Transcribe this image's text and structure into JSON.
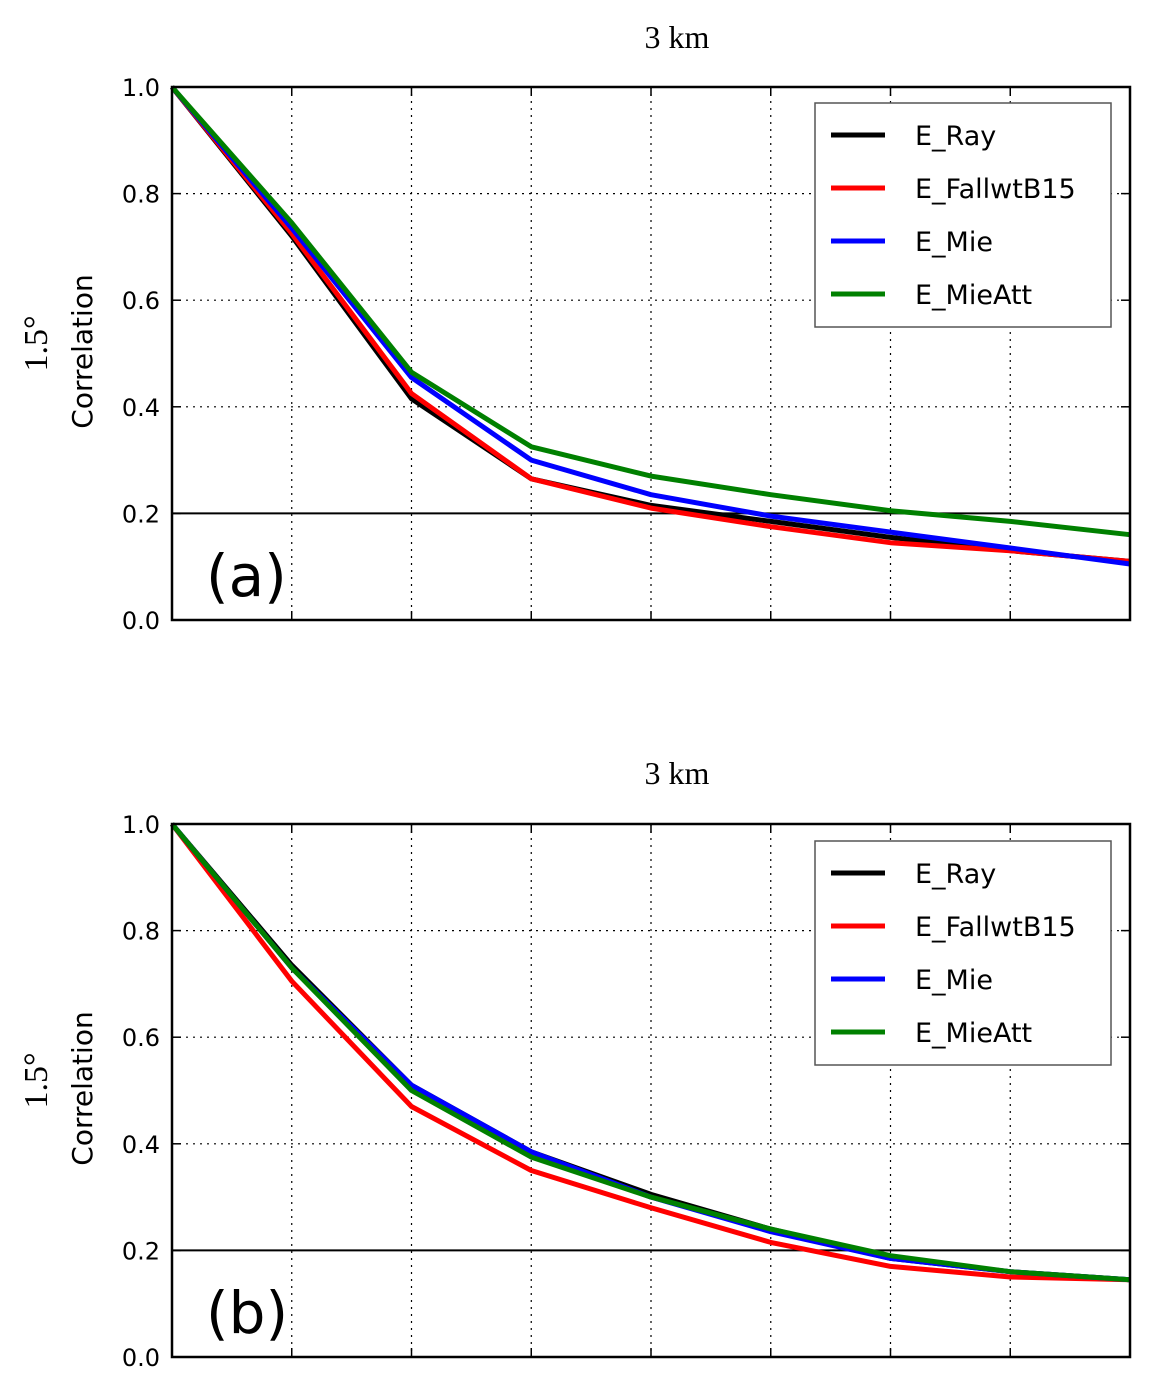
{
  "chart_data": [
    {
      "type": "line",
      "title": "3 km",
      "row_label": "1.5°",
      "ylabel": "Correlation",
      "panel_label": "(a)",
      "x": [
        0,
        1,
        2,
        3,
        4,
        5,
        6,
        7,
        8
      ],
      "ylim": [
        0.0,
        1.0
      ],
      "yticks": [
        "0.0",
        "0.2",
        "0.4",
        "0.6",
        "0.8",
        "1.0"
      ],
      "grid": true,
      "legend_position": "top-right",
      "threshold": 0.2,
      "series": [
        {
          "name": "E_Ray",
          "color": "#000000",
          "values": [
            1.0,
            0.72,
            0.415,
            0.265,
            0.215,
            0.185,
            0.155,
            0.13,
            0.11
          ]
        },
        {
          "name": "E_FallwtB15",
          "color": "#ff0000",
          "values": [
            1.0,
            0.725,
            0.425,
            0.265,
            0.21,
            0.175,
            0.145,
            0.13,
            0.11
          ]
        },
        {
          "name": "E_Mie",
          "color": "#0000ff",
          "values": [
            1.0,
            0.735,
            0.455,
            0.3,
            0.235,
            0.195,
            0.165,
            0.135,
            0.105
          ]
        },
        {
          "name": "E_MieAtt",
          "color": "#008000",
          "values": [
            1.0,
            0.745,
            0.465,
            0.325,
            0.27,
            0.235,
            0.205,
            0.185,
            0.16
          ]
        }
      ]
    },
    {
      "type": "line",
      "title": "3 km",
      "row_label": "1.5°",
      "ylabel": "Correlation",
      "panel_label": "(b)",
      "x": [
        0,
        1,
        2,
        3,
        4,
        5,
        6,
        7,
        8
      ],
      "ylim": [
        0.0,
        1.0
      ],
      "yticks": [
        "0.0",
        "0.2",
        "0.4",
        "0.6",
        "0.8",
        "1.0"
      ],
      "grid": true,
      "legend_position": "top-right",
      "threshold": 0.2,
      "series": [
        {
          "name": "E_Ray",
          "color": "#000000",
          "values": [
            1.0,
            0.735,
            0.51,
            0.385,
            0.305,
            0.24,
            0.185,
            0.16,
            0.145
          ]
        },
        {
          "name": "E_FallwtB15",
          "color": "#ff0000",
          "values": [
            1.0,
            0.705,
            0.47,
            0.35,
            0.28,
            0.215,
            0.17,
            0.15,
            0.145
          ]
        },
        {
          "name": "E_Mie",
          "color": "#0000ff",
          "values": [
            1.0,
            0.73,
            0.51,
            0.385,
            0.3,
            0.235,
            0.185,
            0.16,
            0.145
          ]
        },
        {
          "name": "E_MieAtt",
          "color": "#008000",
          "values": [
            1.0,
            0.73,
            0.5,
            0.375,
            0.3,
            0.24,
            0.19,
            0.16,
            0.145
          ]
        }
      ]
    }
  ]
}
